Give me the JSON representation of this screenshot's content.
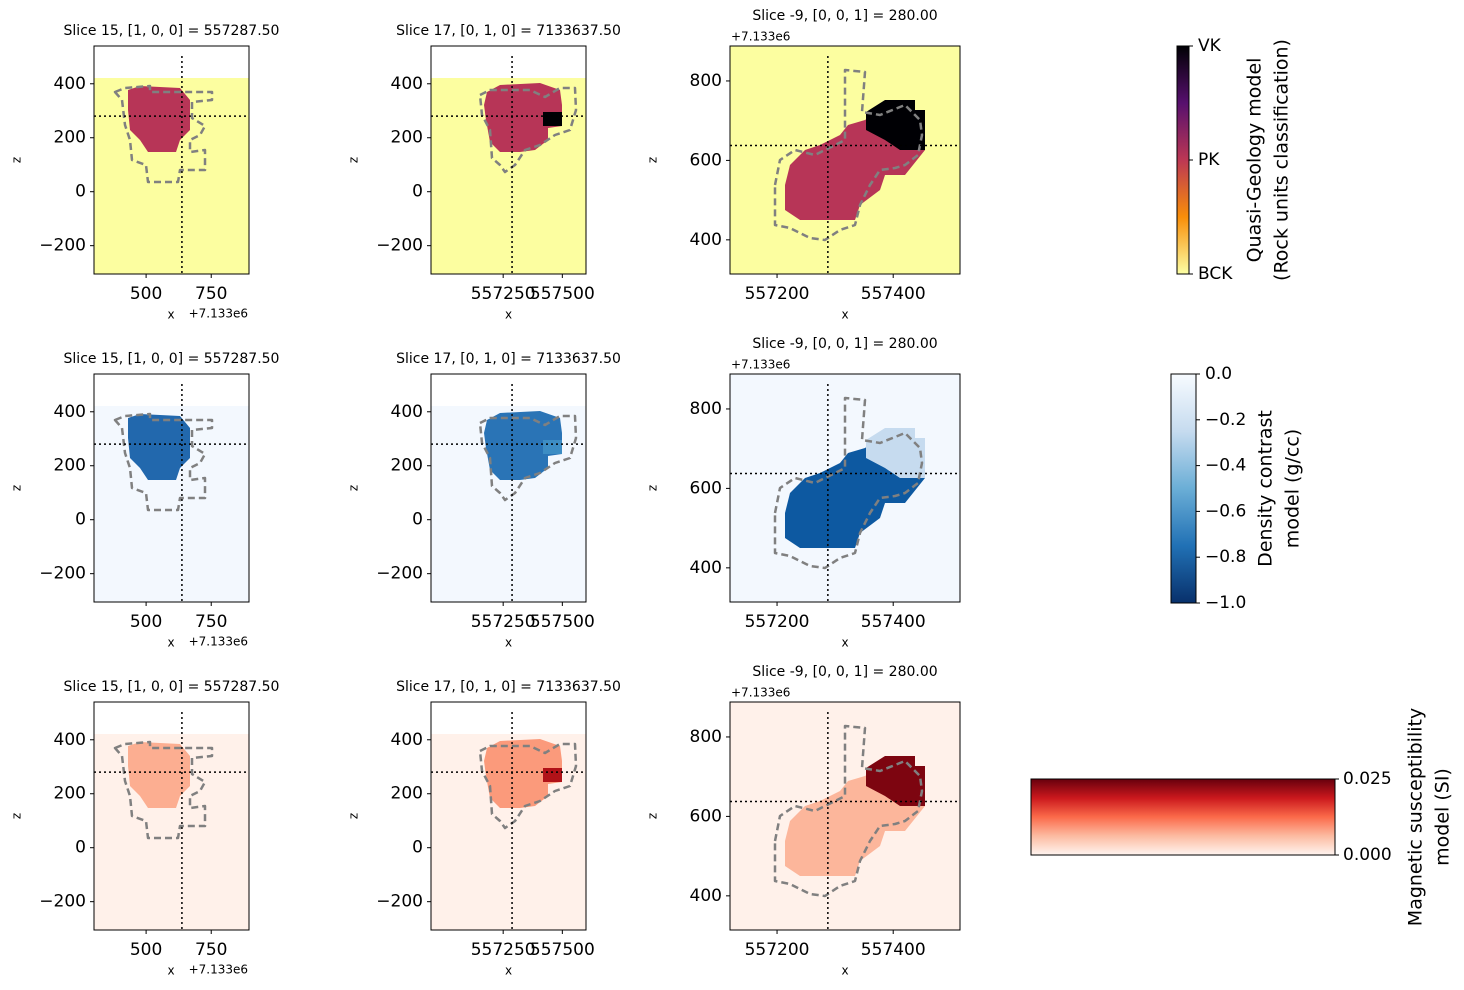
{
  "chart_data": [
    {
      "type": "heatmap",
      "title": "Slice 15, [1, 0, 0] = 557287.50",
      "xlabel": "x",
      "ylabel": "z",
      "offset_text": "+7.133e6",
      "xlim": [
        300,
        895
      ],
      "ylim": [
        -305,
        540
      ],
      "xticks": [
        500,
        750
      ],
      "yticks": [
        {
          "value": -200,
          "label": "−200"
        },
        0,
        200,
        400
      ],
      "crosshair": [
        637.5,
        280
      ],
      "colors": [
        "#fcfea0",
        "#b73557",
        "#000004"
      ]
    },
    {
      "type": "heatmap",
      "title": "Slice 17, [0, 1, 0] = 7133637.50",
      "xlabel": "x",
      "ylabel": "z",
      "xlim": [
        556945,
        557600
      ],
      "ylim": [
        -305,
        540
      ],
      "xticks": [
        557250,
        557500
      ],
      "yticks": [
        {
          "value": -200,
          "label": "−200"
        },
        0,
        200,
        400
      ],
      "crosshair": [
        557287.5,
        280
      ],
      "colors": [
        "#fcfea0",
        "#b73557",
        "#000004"
      ]
    },
    {
      "type": "heatmap",
      "title": "Slice -9, [0, 0, 1] = 280.00",
      "xlabel": "x",
      "ylabel": "z",
      "offset_text": "+7.133e6",
      "xlim": [
        557119,
        557515
      ],
      "ylim": [
        314,
        888
      ],
      "xticks": [
        557200,
        557400
      ],
      "yticks": [
        400,
        600,
        800
      ],
      "crosshair": [
        557287.5,
        637.5
      ],
      "colors": [
        "#fcfea0",
        "#b73557",
        "#000004"
      ]
    },
    {
      "type": "heatmap",
      "title": "Slice 15, [1, 0, 0] = 557287.50",
      "xlabel": "x",
      "ylabel": "z",
      "offset_text": "+7.133e6",
      "xlim": [
        300,
        895
      ],
      "ylim": [
        -305,
        540
      ],
      "xticks": [
        500,
        750
      ],
      "yticks": [
        {
          "value": -200,
          "label": "−200"
        },
        0,
        200,
        400
      ],
      "crosshair": [
        637.5,
        280
      ],
      "colors": [
        "#f3f8fe",
        "#2268ad",
        "#1c62a8"
      ]
    },
    {
      "type": "heatmap",
      "title": "Slice 17, [0, 1, 0] = 7133637.50",
      "xlabel": "x",
      "ylabel": "z",
      "xlim": [
        556945,
        557600
      ],
      "ylim": [
        -305,
        540
      ],
      "xticks": [
        557250,
        557500
      ],
      "yticks": [
        {
          "value": -200,
          "label": "−200"
        },
        0,
        200,
        400
      ],
      "crosshair": [
        557287.5,
        280
      ],
      "colors": [
        "#f3f8fe",
        "#2a74b6",
        "#3d8dc4"
      ]
    },
    {
      "type": "heatmap",
      "title": "Slice -9, [0, 0, 1] = 280.00",
      "xlabel": "x",
      "ylabel": "z",
      "offset_text": "+7.133e6",
      "xlim": [
        557119,
        557515
      ],
      "ylim": [
        314,
        888
      ],
      "xticks": [
        557200,
        557400
      ],
      "yticks": [
        400,
        600,
        800
      ],
      "crosshair": [
        557287.5,
        637.5
      ],
      "colors": [
        "#f3f8fe",
        "#0d59a1",
        "#c6dbef"
      ]
    },
    {
      "type": "heatmap",
      "title": "Slice 15, [1, 0, 0] = 557287.50",
      "xlabel": "x",
      "ylabel": "z",
      "offset_text": "+7.133e6",
      "xlim": [
        300,
        895
      ],
      "ylim": [
        -305,
        540
      ],
      "xticks": [
        500,
        750
      ],
      "yticks": [
        {
          "value": -200,
          "label": "−200"
        },
        0,
        200,
        400
      ],
      "crosshair": [
        637.5,
        280
      ],
      "colors": [
        "#fff1ea",
        "#fcae91",
        "#fcae91"
      ]
    },
    {
      "type": "heatmap",
      "title": "Slice 17, [0, 1, 0] = 7133637.50",
      "xlabel": "x",
      "ylabel": "z",
      "xlim": [
        556945,
        557600
      ],
      "ylim": [
        -305,
        540
      ],
      "xticks": [
        557250,
        557500
      ],
      "yticks": [
        {
          "value": -200,
          "label": "−200"
        },
        0,
        200,
        400
      ],
      "crosshair": [
        557287.5,
        280
      ],
      "colors": [
        "#fff1ea",
        "#fb9a7b",
        "#b11218"
      ]
    },
    {
      "type": "heatmap",
      "title": "Slice -9, [0, 0, 1] = 280.00",
      "xlabel": "x",
      "ylabel": "z",
      "offset_text": "+7.133e6",
      "xlim": [
        557119,
        557515
      ],
      "ylim": [
        314,
        888
      ],
      "xticks": [
        557200,
        557400
      ],
      "yticks": [
        400,
        600,
        800
      ],
      "crosshair": [
        557287.5,
        637.5
      ],
      "colors": [
        "#fff1ea",
        "#fcb69b",
        "#7d0510"
      ]
    },
    {
      "type": "colorbar",
      "label": [
        "Quasi-Geology model",
        "(Rock units classification)"
      ],
      "ylim": [
        0,
        2
      ],
      "yticks": [
        {
          "value": 0,
          "label": "BCK"
        },
        {
          "value": 1,
          "label": "PK"
        },
        {
          "value": 2,
          "label": "VK"
        }
      ],
      "cmap": [
        "#fcffa4",
        "#f98e09",
        "#bc3754",
        "#57106e",
        "#000004"
      ]
    },
    {
      "type": "colorbar",
      "label": [
        "Density contrast",
        "model (g/cc)"
      ],
      "ylim": [
        -1,
        0
      ],
      "yticks": [
        {
          "value": -1,
          "label": "−1.0"
        },
        {
          "value": -0.8,
          "label": "−0.8"
        },
        {
          "value": -0.6,
          "label": "−0.6"
        },
        {
          "value": -0.4,
          "label": "−0.4"
        },
        {
          "value": -0.2,
          "label": "−0.2"
        },
        {
          "value": 0,
          "label": "0.0"
        }
      ],
      "cmap": [
        "#08306b",
        "#2171b5",
        "#6baed6",
        "#c6dbef",
        "#f7fbff"
      ]
    },
    {
      "type": "colorbar",
      "label": [
        "Magnetic susceptibility",
        "model (SI)"
      ],
      "ylim": [
        0,
        0.025
      ],
      "yticks": [
        {
          "value": 0,
          "label": "0.000"
        },
        {
          "value": 0.025,
          "label": "0.025"
        }
      ],
      "cmap": [
        "#fff5f0",
        "#fcbba1",
        "#fb6a4a",
        "#cb181d",
        "#67000d"
      ]
    }
  ]
}
